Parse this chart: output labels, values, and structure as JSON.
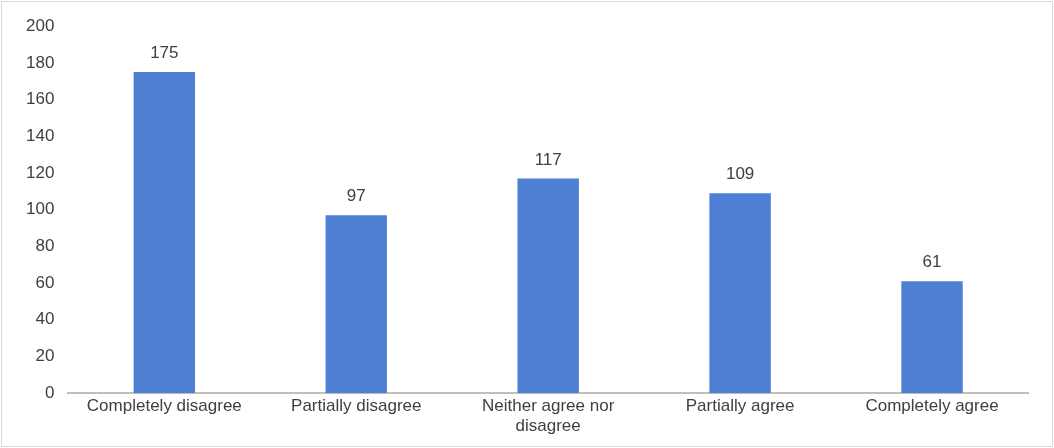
{
  "chart_data": {
    "type": "bar",
    "categories": [
      "Completely disagree",
      "Partially disagree",
      "Neither agree nor disagree",
      "Partially agree",
      "Completely agree"
    ],
    "values": [
      175,
      97,
      117,
      109,
      61
    ],
    "color": "#4f7fd2",
    "ylim": [
      0,
      200
    ],
    "yticks": [
      0,
      20,
      40,
      60,
      80,
      100,
      120,
      140,
      160,
      180,
      200
    ],
    "grid": false,
    "legend": false,
    "data_labels": true
  }
}
